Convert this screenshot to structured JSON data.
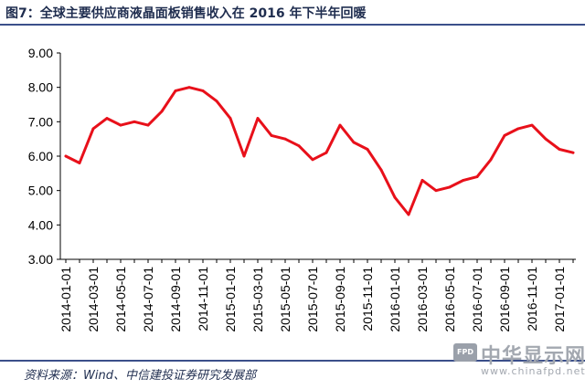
{
  "title": "图7：全球主要供应商液晶面板销售收入在 2016 年下半年回暖",
  "source": "资料来源：Wind、中信建投证券研究发展部",
  "watermark": {
    "badge": "FPD",
    "name": "中华显示网",
    "url": "www.chinafpd.net"
  },
  "chart_data": {
    "type": "line",
    "title": "",
    "xlabel": "",
    "ylabel": "",
    "ylim": [
      3.0,
      9.0
    ],
    "yticks": [
      "3.00",
      "4.00",
      "5.00",
      "6.00",
      "7.00",
      "8.00",
      "9.00"
    ],
    "grid": false,
    "line_color": "#e8101a",
    "x": [
      "2014-01-01",
      "2014-02-01",
      "2014-03-01",
      "2014-04-01",
      "2014-05-01",
      "2014-06-01",
      "2014-07-01",
      "2014-08-01",
      "2014-09-01",
      "2014-10-01",
      "2014-11-01",
      "2014-12-01",
      "2015-01-01",
      "2015-02-01",
      "2015-03-01",
      "2015-04-01",
      "2015-05-01",
      "2015-06-01",
      "2015-07-01",
      "2015-08-01",
      "2015-09-01",
      "2015-10-01",
      "2015-11-01",
      "2015-12-01",
      "2016-01-01",
      "2016-02-01",
      "2016-03-01",
      "2016-04-01",
      "2016-05-01",
      "2016-06-01",
      "2016-07-01",
      "2016-08-01",
      "2016-09-01",
      "2016-10-01",
      "2016-11-01",
      "2016-12-01",
      "2017-01-01",
      "2017-02-01"
    ],
    "xticklabels": [
      "2014-01-01",
      "2014-03-01",
      "2014-05-01",
      "2014-07-01",
      "2014-09-01",
      "2014-11-01",
      "2015-01-01",
      "2015-03-01",
      "2015-05-01",
      "2015-07-01",
      "2015-09-01",
      "2015-11-01",
      "2016-01-01",
      "2016-03-01",
      "2016-05-01",
      "2016-07-01",
      "2016-09-01",
      "2016-11-01",
      "2017-01-01"
    ],
    "series": [
      {
        "name": "",
        "values": [
          6.0,
          5.8,
          6.8,
          7.1,
          6.9,
          7.0,
          6.9,
          7.3,
          7.9,
          8.0,
          7.9,
          7.6,
          7.1,
          6.0,
          7.1,
          6.6,
          6.5,
          6.3,
          5.9,
          6.1,
          6.9,
          6.4,
          6.2,
          5.6,
          4.8,
          4.3,
          5.3,
          5.0,
          5.1,
          5.3,
          5.4,
          5.9,
          6.6,
          6.8,
          6.9,
          6.5,
          6.2,
          6.1
        ]
      }
    ]
  }
}
